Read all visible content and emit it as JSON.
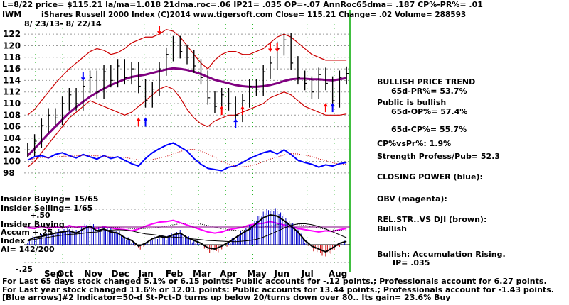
{
  "header": {
    "line1": "L=8/22  price= $115.21  la/ma=1.018 21dma.roc=.06 IP21= .035 OP=-.07 AnnRoc65dma= .187 CP%-PR%= .01",
    "ticker": "IWM",
    "title": "iShares Russell 2000 Index   (C)2014 www.tigersoft.com   Close=  115.21  Change= .02 Volume=  288593",
    "daterange": "8/ 23/13- 8/ 22/14"
  },
  "side": {
    "trend": "BULLISH PRICE TREND",
    "pr": "65d-PR%= 53.7%",
    "public": "Public is bullish",
    "op": "65d-OP%= 57.4%",
    "cp": "65d-CP%= 55.7%",
    "cpvspr": "CP%vsPr%:  1.9%",
    "strength": "Strength Profess/Pub= 52.3",
    "closing": "CLOSING POWER (blue):",
    "obv": "OBV (magenta):",
    "relstr": "REL.STR..VS DJI (brown):",
    "relstr_val": "Bullish",
    "accum": "Bullish: Accumulation Rising.",
    "ip": "IP=   .035"
  },
  "labels": {
    "insider_buying": "Insider Buying= 15/65",
    "insider_selling": "Insider Selling= 1/65",
    "plus50": "+.50",
    "insider_buying2": "Insider Buying",
    "accum_line": "Accum  +.25",
    "index": "Index",
    "ai": "AI= 142/200",
    "minus25": "-.25"
  },
  "footer": {
    "line1": "For Last 65 days stock changed  5.1% or  6.15 points:  Public accounts for -.12 points.;  Professionals account for  6.27 points.",
    "line2": "For Last year stock changed  11.6% or 12.01 points:  Public accounts for  13.44 points.;  Professionals account for -1.43 points.",
    "line3": "[Blue arrows]#2 Indicator=50-d St-Pct-D turns up below 20/turns down over 80.. Its gain= 23.6% Buy"
  },
  "colors": {
    "closing_power": "#0000ff",
    "obv": "#ff00ff",
    "ma65": "#800080",
    "bands": "#cc0000",
    "grid": "#00aa00",
    "accum_pos": "#0000cc",
    "accum_neg": "#cc0000"
  },
  "chart_data": {
    "type": "bar",
    "subtype": "ohlc",
    "y_ticks": [
      98,
      100,
      102,
      104,
      106,
      108,
      110,
      112,
      114,
      116,
      118,
      120,
      122
    ],
    "ylim": [
      97,
      123
    ],
    "months": [
      "Sep",
      "Oct",
      "Nov",
      "Dec",
      "Jan",
      "Feb",
      "Mar",
      "Apr",
      "May",
      "Jun",
      "Jul",
      "Aug"
    ],
    "price_close": [
      102.0,
      103.5,
      106.2,
      108.0,
      107.5,
      110.0,
      111.5,
      110.0,
      113.0,
      114.5,
      112.0,
      115.5,
      114.0,
      116.5,
      114.5,
      116.0,
      113.0,
      110.5,
      112.5,
      116.0,
      118.5,
      120.5,
      119.0,
      118.0,
      116.5,
      114.5,
      111.0,
      109.5,
      111.5,
      110.0,
      108.0,
      110.5,
      113.0,
      112.5,
      115.5,
      117.0,
      119.5,
      121.0,
      117.0,
      114.5,
      113.5,
      112.0,
      115.0,
      113.5,
      110.5,
      114.5,
      115.2
    ],
    "ma65": [
      101.0,
      102.2,
      103.5,
      104.8,
      106.0,
      107.2,
      108.4,
      109.4,
      110.3,
      111.2,
      111.9,
      112.6,
      113.2,
      113.7,
      114.2,
      114.6,
      114.8,
      115.0,
      115.3,
      115.6,
      115.9,
      116.1,
      116.0,
      115.8,
      115.5,
      115.1,
      114.6,
      114.1,
      113.8,
      113.5,
      113.2,
      113.0,
      112.9,
      112.9,
      113.0,
      113.2,
      113.5,
      113.9,
      114.2,
      114.3,
      114.3,
      114.2,
      114.2,
      114.1,
      114.0,
      114.2,
      114.4
    ],
    "upper_band": [
      108.0,
      109.0,
      110.5,
      112.0,
      113.5,
      114.8,
      116.0,
      117.0,
      118.0,
      119.0,
      119.5,
      119.2,
      118.5,
      118.8,
      119.5,
      120.5,
      121.0,
      121.5,
      121.5,
      122.0,
      122.8,
      122.5,
      121.5,
      120.0,
      118.5,
      117.0,
      116.0,
      117.5,
      118.5,
      119.0,
      119.0,
      118.5,
      118.5,
      119.0,
      119.5,
      120.5,
      121.5,
      122.0,
      121.5,
      120.5,
      119.5,
      118.5,
      118.0,
      117.5,
      117.5,
      117.5,
      117.5
    ],
    "lower_band": [
      99.0,
      100.0,
      101.5,
      103.0,
      104.5,
      106.0,
      107.5,
      108.5,
      109.5,
      110.5,
      110.0,
      109.5,
      109.0,
      108.5,
      108.0,
      108.5,
      109.5,
      110.5,
      111.5,
      112.5,
      113.0,
      112.5,
      111.0,
      109.0,
      107.5,
      106.5,
      106.0,
      107.0,
      107.5,
      108.0,
      108.0,
      108.5,
      109.0,
      109.5,
      110.0,
      111.0,
      111.5,
      112.0,
      111.5,
      110.5,
      109.5,
      109.0,
      108.5,
      108.0,
      108.0,
      108.0,
      108.2
    ],
    "red_arrows_down": [
      {
        "i": 19,
        "v": 122.5
      },
      {
        "i": 35,
        "v": 119.5
      },
      {
        "i": 36,
        "v": 119.5
      },
      {
        "i": 8,
        "v": 114.5
      }
    ],
    "red_arrows_up": [
      {
        "i": 16,
        "v": 107.0
      },
      {
        "i": 28,
        "v": 109.0
      },
      {
        "i": 31,
        "v": 109.0
      },
      {
        "i": 43,
        "v": 109.5
      }
    ],
    "blue_arrows_up": [
      {
        "i": 17,
        "v": 107.0
      },
      {
        "i": 30,
        "v": 106.8
      },
      {
        "i": 44,
        "v": 109.5
      }
    ],
    "closing_power": [
      100.2,
      100.8,
      101.0,
      100.6,
      101.2,
      101.5,
      101.0,
      100.6,
      101.2,
      100.8,
      100.4,
      101.0,
      100.5,
      100.8,
      100.2,
      99.6,
      99.2,
      100.5,
      101.5,
      102.2,
      102.8,
      103.2,
      102.5,
      101.8,
      100.5,
      99.5,
      98.8,
      98.6,
      98.4,
      99.0,
      99.2,
      99.8,
      100.5,
      101.0,
      101.5,
      101.8,
      101.3,
      102.0,
      101.2,
      100.2,
      99.8,
      99.5,
      99.0,
      99.4,
      99.2,
      99.6,
      99.8
    ],
    "obv": [
      96.5,
      96.4,
      96.8,
      96.4,
      96.7,
      96.5,
      96.9,
      96.6,
      96.8,
      96.5,
      96.4,
      96.7,
      96.5,
      96.3,
      96.2,
      96.0,
      96.3,
      96.8,
      97.2,
      97.5,
      97.6,
      97.8,
      97.4,
      97.0,
      96.6,
      96.2,
      95.8,
      95.6,
      95.8,
      96.2,
      96.4,
      96.6,
      97.0,
      97.2,
      97.3,
      97.6,
      97.3,
      97.0,
      96.7,
      96.4,
      96.2,
      96.0,
      95.8,
      96.0,
      95.9,
      96.2,
      96.4
    ],
    "accum_index": [
      0.05,
      0.1,
      0.12,
      0.15,
      0.18,
      0.2,
      0.22,
      0.18,
      0.25,
      0.3,
      0.22,
      0.25,
      0.2,
      0.18,
      0.1,
      0.05,
      -0.05,
      0.0,
      0.08,
      0.12,
      0.1,
      0.15,
      0.18,
      0.1,
      0.05,
      0.0,
      -0.08,
      -0.1,
      -0.05,
      0.02,
      0.1,
      0.18,
      0.25,
      0.35,
      0.45,
      0.5,
      0.48,
      0.4,
      0.3,
      0.2,
      0.05,
      -0.05,
      -0.1,
      -0.15,
      -0.08,
      0.0,
      0.035
    ],
    "accum_ylim": [
      -0.3,
      0.55
    ]
  }
}
